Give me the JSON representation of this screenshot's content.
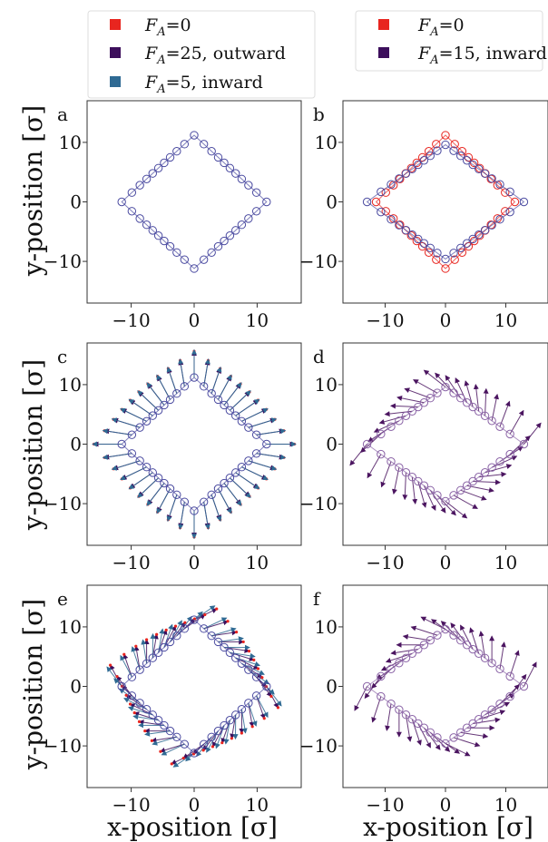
{
  "figure": {
    "ylabel": "y-position [σ]",
    "xlabel": "x-position [σ]"
  },
  "legends": [
    {
      "entries": [
        {
          "label": "F_A=0",
          "color": "#e8251f"
        },
        {
          "label": "F_A=25, outward",
          "color": "#3d0f5c"
        },
        {
          "label": "F_A=5, inward",
          "color": "#2f6a93"
        }
      ]
    },
    {
      "entries": [
        {
          "label": "F_A=0",
          "color": "#e8251f"
        },
        {
          "label": "F_A=15, inward",
          "color": "#3d0f5c"
        }
      ]
    }
  ],
  "colors": {
    "ring_outline": "#4a4aa0",
    "ring_red": "#e8251f",
    "outward": "#3d0f5c",
    "inward_blue": "#2f6a93",
    "inward_purple": "#4b1560",
    "faded_purple": "#8a63a6"
  },
  "chart_data": [
    {
      "panel": "a",
      "type": "scatter",
      "xlim": [
        -17,
        17
      ],
      "ylim": [
        -17,
        17
      ],
      "xticks": [
        -10,
        0,
        10
      ],
      "yticks": [
        -10,
        0,
        10
      ],
      "series": [
        {
          "shape": "diamond",
          "half_width": 11.5,
          "half_height": 11.2,
          "points": 40,
          "vectors": "none"
        }
      ]
    },
    {
      "panel": "b",
      "type": "scatter",
      "xlim": [
        -17,
        17
      ],
      "ylim": [
        -17,
        17
      ],
      "xticks": [
        -10,
        0,
        10
      ],
      "yticks": [
        -10,
        0,
        10
      ],
      "series": [
        {
          "name": "F_A=0",
          "shape": "diamond",
          "half_width": 11.5,
          "half_height": 11.2,
          "points": 40,
          "color": "#e8251f"
        },
        {
          "name": "F_A=15, inward",
          "shape": "diamond",
          "half_width": 13.0,
          "half_height": 9.6,
          "points": 40,
          "color": "#3d0f5c"
        }
      ]
    },
    {
      "panel": "c",
      "type": "scatter",
      "xlim": [
        -17,
        17
      ],
      "ylim": [
        -17,
        17
      ],
      "xticks": [
        -10,
        0,
        10
      ],
      "yticks": [
        -10,
        0,
        10
      ],
      "series": [
        {
          "shape": "diamond",
          "half_width": 11.5,
          "half_height": 11.2,
          "points": 40,
          "vectors": "radial_out",
          "vector_length": 4.4
        }
      ]
    },
    {
      "panel": "d",
      "type": "scatter",
      "xlim": [
        -17,
        17
      ],
      "ylim": [
        -17,
        17
      ],
      "xticks": [
        -10,
        0,
        10
      ],
      "yticks": [
        -10,
        0,
        10
      ],
      "series": [
        {
          "shape": "diamond",
          "half_width": 13.0,
          "half_height": 9.6,
          "points": 40,
          "vectors": "pinwheel",
          "vector_length": 4.5
        }
      ]
    },
    {
      "panel": "e",
      "type": "scatter",
      "xlim": [
        -17,
        17
      ],
      "ylim": [
        -17,
        17
      ],
      "xticks": [
        -10,
        0,
        10
      ],
      "yticks": [
        -10,
        0,
        10
      ],
      "series": [
        {
          "shape": "diamond",
          "half_width": 11.5,
          "half_height": 11.2,
          "points": 40,
          "vectors": "swirl",
          "vector_length": 4.0
        }
      ]
    },
    {
      "panel": "f",
      "type": "scatter",
      "xlim": [
        -17,
        17
      ],
      "ylim": [
        -17,
        17
      ],
      "xticks": [
        -10,
        0,
        10
      ],
      "yticks": [
        -10,
        0,
        10
      ],
      "series": [
        {
          "shape": "diamond",
          "half_width": 13.0,
          "half_height": 9.6,
          "points": 40,
          "vectors": "swirl_opposite",
          "vector_length": 4.5
        }
      ]
    }
  ]
}
